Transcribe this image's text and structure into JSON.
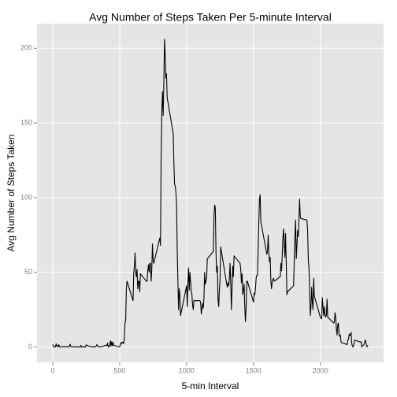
{
  "chart_data": {
    "type": "line",
    "title": "Avg Number of Steps Taken Per 5-minute Interval",
    "x_label": "5-min Interval",
    "y_label": "Avg Number of Steps Taken",
    "x": [
      0,
      5,
      10,
      15,
      20,
      25,
      30,
      35,
      40,
      45,
      50,
      55,
      100,
      105,
      110,
      115,
      120,
      125,
      130,
      135,
      140,
      145,
      150,
      155,
      200,
      205,
      210,
      215,
      220,
      225,
      230,
      235,
      240,
      245,
      250,
      255,
      300,
      305,
      310,
      315,
      320,
      325,
      330,
      335,
      340,
      345,
      350,
      355,
      400,
      405,
      410,
      415,
      420,
      425,
      430,
      435,
      440,
      445,
      450,
      455,
      500,
      505,
      510,
      515,
      520,
      525,
      530,
      535,
      540,
      545,
      550,
      555,
      600,
      605,
      610,
      615,
      620,
      625,
      630,
      635,
      640,
      645,
      650,
      655,
      700,
      705,
      710,
      715,
      720,
      725,
      730,
      735,
      740,
      745,
      750,
      755,
      800,
      805,
      810,
      815,
      820,
      825,
      830,
      835,
      840,
      845,
      850,
      855,
      900,
      905,
      910,
      915,
      920,
      925,
      930,
      935,
      940,
      945,
      950,
      955,
      1000,
      1005,
      1010,
      1015,
      1020,
      1025,
      1030,
      1035,
      1040,
      1045,
      1050,
      1055,
      1100,
      1105,
      1110,
      1115,
      1120,
      1125,
      1130,
      1135,
      1140,
      1145,
      1150,
      1155,
      1200,
      1205,
      1210,
      1215,
      1220,
      1225,
      1230,
      1235,
      1240,
      1245,
      1250,
      1255,
      1300,
      1305,
      1310,
      1315,
      1320,
      1325,
      1330,
      1335,
      1340,
      1345,
      1350,
      1355,
      1400,
      1405,
      1410,
      1415,
      1420,
      1425,
      1430,
      1435,
      1440,
      1445,
      1450,
      1455,
      1500,
      1505,
      1510,
      1515,
      1520,
      1525,
      1530,
      1535,
      1540,
      1545,
      1550,
      1555,
      1600,
      1605,
      1610,
      1615,
      1620,
      1625,
      1630,
      1635,
      1640,
      1645,
      1650,
      1655,
      1700,
      1705,
      1710,
      1715,
      1720,
      1725,
      1730,
      1735,
      1740,
      1745,
      1750,
      1755,
      1800,
      1805,
      1810,
      1815,
      1820,
      1825,
      1830,
      1835,
      1840,
      1845,
      1850,
      1855,
      1900,
      1905,
      1910,
      1915,
      1920,
      1925,
      1930,
      1935,
      1940,
      1945,
      1950,
      1955,
      2000,
      2005,
      2010,
      2015,
      2020,
      2025,
      2030,
      2035,
      2040,
      2045,
      2050,
      2055,
      2100,
      2105,
      2110,
      2115,
      2120,
      2125,
      2130,
      2135,
      2140,
      2145,
      2150,
      2155,
      2200,
      2205,
      2210,
      2215,
      2220,
      2225,
      2230,
      2235,
      2240,
      2245,
      2250,
      2255,
      2300,
      2305,
      2310,
      2315,
      2320,
      2325,
      2330,
      2335,
      2340,
      2345,
      2350,
      2355
    ],
    "series": [
      {
        "name": "steps",
        "color": "#000000",
        "values": [
          1.7,
          0.3,
          0.1,
          0.2,
          0.1,
          2.1,
          0.5,
          0.9,
          0,
          1.5,
          0.3,
          0.1,
          0.3,
          0,
          0.1,
          0.3,
          0,
          1.1,
          1.8,
          0.2,
          0.2,
          0.3,
          0.3,
          0,
          0,
          0,
          1.1,
          0,
          0,
          0.1,
          0,
          0.2,
          0,
          0,
          1.5,
          0.9,
          0,
          0,
          0,
          0,
          0.2,
          0.6,
          1.6,
          0.6,
          0.5,
          0.1,
          0,
          0,
          1.2,
          0.9,
          2.6,
          0,
          0.3,
          0.4,
          4.1,
          0.7,
          3.5,
          0.8,
          3.1,
          1.1,
          0,
          1.5,
          3,
          2.2,
          3.3,
          3,
          2.1,
          6,
          16,
          18,
          39,
          44,
          31,
          49,
          54,
          63,
          50,
          47,
          52,
          39,
          44,
          44,
          37,
          49,
          44,
          44,
          51,
          55,
          50,
          56,
          56,
          44,
          52,
          69,
          58,
          56,
          73,
          68,
          129,
          158,
          171,
          155,
          177,
          206,
          196,
          180,
          183,
          167,
          143,
          124,
          109,
          108,
          104,
          96,
          66,
          45,
          25,
          39,
          35,
          21,
          41,
          27,
          42,
          53,
          38,
          50,
          44,
          37,
          35,
          28,
          25,
          31,
          31,
          30,
          22,
          26,
          29,
          26,
          33,
          50,
          42,
          44,
          46,
          59,
          64,
          88,
          95,
          93,
          63,
          50,
          54,
          32,
          27,
          38,
          45,
          67,
          42,
          40,
          43,
          41,
          46,
          56,
          43,
          25,
          40,
          54,
          47,
          61,
          56,
          52,
          43,
          49,
          35,
          38,
          42,
          27,
          17,
          26,
          44,
          44,
          30,
          36,
          35,
          39,
          46,
          48,
          48,
          65,
          83,
          99,
          102,
          84,
          62,
          64,
          75,
          63,
          57,
          60,
          44,
          39,
          44,
          45,
          46,
          44,
          47,
          56,
          51,
          61,
          73,
          79,
          69,
          60,
          76,
          57,
          35,
          37,
          41,
          58,
          75,
          85,
          59,
          68,
          78,
          74,
          85,
          99,
          87,
          86,
          85,
          78,
          58,
          53,
          36,
          21,
          27,
          40,
          30,
          25,
          46,
          34,
          20,
          19,
          19,
          33,
          27,
          21,
          27,
          21,
          20,
          21,
          32,
          20,
          16,
          17,
          23,
          19,
          12,
          8,
          15,
          16,
          8,
          7,
          8,
          3,
          1.6,
          4.6,
          4.8,
          8.5,
          7.5,
          8.7,
          9.8,
          2.2,
          0.3,
          0.1,
          1.6,
          4.6,
          3.3,
          3.5,
          0,
          0.8,
          1,
          1.6,
          2.6,
          4.7,
          3.3,
          0.6,
          0.2,
          1.1
        ]
      }
    ],
    "xlim": [
      -117.75,
      2472.75
    ],
    "ylim": [
      -10.3,
      216.5
    ],
    "xticks": [
      0,
      500,
      1000,
      1500,
      2000
    ],
    "yticks": [
      0,
      50,
      100,
      150,
      200
    ],
    "grid": true,
    "background": "#e5e5e5"
  }
}
